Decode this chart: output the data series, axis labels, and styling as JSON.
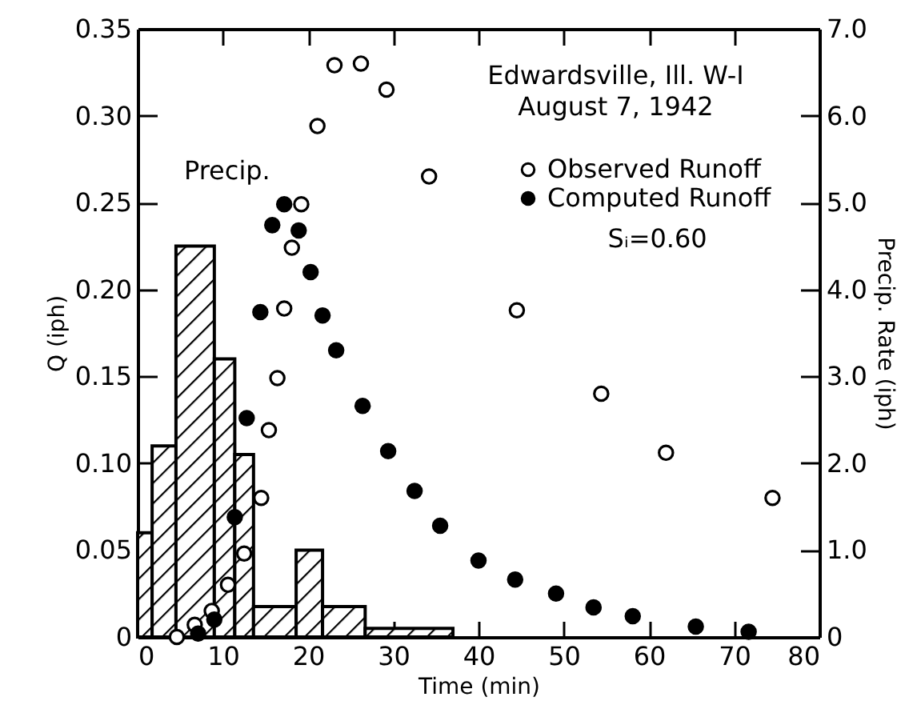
{
  "chart_data": {
    "type": "scatter",
    "xlabel": "Time (min)",
    "ylabel": "Q (iph)",
    "y2label": "Precip. Rate (iph)",
    "annotations": [
      "Edwardsville, Ill. W-I",
      "August 7, 1942",
      "Sᵢ=0.60",
      "Precip."
    ],
    "xlim": [
      0,
      80
    ],
    "xticks": [
      0,
      10,
      20,
      30,
      40,
      50,
      60,
      70,
      80
    ],
    "ylim": [
      0,
      0.35
    ],
    "yticks": [
      0,
      0.05,
      {
        "value": 0.1,
        "label": "0.10"
      },
      0.15,
      {
        "value": 0.2,
        "label": "0.20"
      },
      0.25,
      {
        "value": 0.3,
        "label": "0.30"
      },
      0.35
    ],
    "y2lim": [
      0,
      7
    ],
    "y2ticks": [
      0,
      {
        "value": 1,
        "label": "1.0"
      },
      {
        "value": 2,
        "label": "2.0"
      },
      {
        "value": 3,
        "label": "3.0"
      },
      {
        "value": 4,
        "label": "4.0"
      },
      {
        "value": 5,
        "label": "5.0"
      },
      {
        "value": 6,
        "label": "6.0"
      },
      {
        "value": 7,
        "label": "7.0"
      }
    ],
    "legend": "top right",
    "marker": "circle",
    "series": [
      {
        "type": "histogram",
        "axis": "y2",
        "color": "#000000",
        "bins": [
          0,
          1.7,
          4.5,
          9,
          11.4,
          13.6,
          18.6,
          21.7,
          26.7,
          37
        ],
        "values": [
          1.2,
          2.2,
          4.5,
          3.2,
          2.1,
          0.35,
          1.0,
          0.35,
          0.1
        ]
      },
      {
        "name": "Observed Runoff",
        "color": "#ffffff",
        "x": [
          4.6,
          6.7,
          8.7,
          10.6,
          12.5,
          14.5,
          15.4,
          16.4,
          17.2,
          18.1,
          19.2,
          21.1,
          23.1,
          26.2,
          29.2,
          34.2,
          44.5,
          54.4,
          62.0,
          74.5
        ],
        "values": [
          0.0,
          0.007,
          0.015,
          0.03,
          0.048,
          0.08,
          0.119,
          0.149,
          0.189,
          0.224,
          0.249,
          0.294,
          0.329,
          0.33,
          0.315,
          0.265,
          0.188,
          0.14,
          0.106,
          0.08
        ]
      },
      {
        "name": "Computed Runoff",
        "color": "#000000",
        "x": [
          7.1,
          9.0,
          11.4,
          12.8,
          14.4,
          15.8,
          17.2,
          18.9,
          20.3,
          21.7,
          23.3,
          26.4,
          29.4,
          32.5,
          35.5,
          40.0,
          44.3,
          49.1,
          53.5,
          58.1,
          65.5,
          71.7
        ],
        "values": [
          0.002,
          0.01,
          0.069,
          0.126,
          0.187,
          0.237,
          0.249,
          0.234,
          0.21,
          0.185,
          0.165,
          0.133,
          0.107,
          0.084,
          0.064,
          0.044,
          0.033,
          0.025,
          0.017,
          0.012,
          0.006,
          0.003
        ]
      }
    ]
  }
}
